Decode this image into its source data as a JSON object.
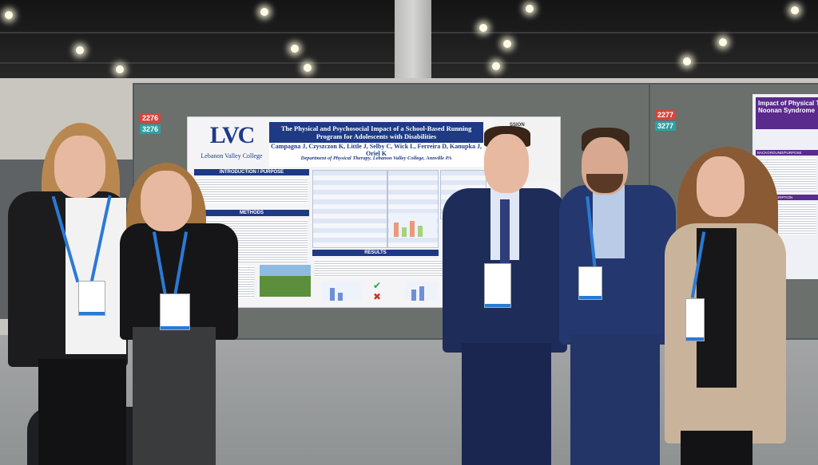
{
  "poster": {
    "logo_mark": "LVC",
    "logo_text": "Lebanon Valley College",
    "title": "The Physical and Psychosocial Impact of a School-Based Running Program for Adolescents with Disabilities",
    "authors": "Campagna J, Czyszczon K, Little J, Selby C, Wick L, Ferreira D, Kanupka J, Oriel K",
    "department": "Department of Physical Therapy, Lebanon Valley College, Annville PA",
    "sections": [
      "INTRODUCTION / PURPOSE",
      "METHODS",
      "RESULTS"
    ],
    "neighbor_partial_heading": "SSION\nENT"
  },
  "board_numbers": {
    "left_top": "2276",
    "left_bottom": "3276",
    "right_top": "2277",
    "right_bottom": "3277"
  },
  "right_poster": {
    "title": "Impact of Physical Th\nNoonan Syndrome",
    "sections": [
      "BACKGROUND/PURPOSE",
      "CASE DESCRIPTION"
    ]
  },
  "colors": {
    "poster_navy": "#1e3a84",
    "right_poster_purple": "#5a2a8c",
    "lanyard_blue": "#2a7ad6",
    "board_gray": "#6b706d"
  }
}
